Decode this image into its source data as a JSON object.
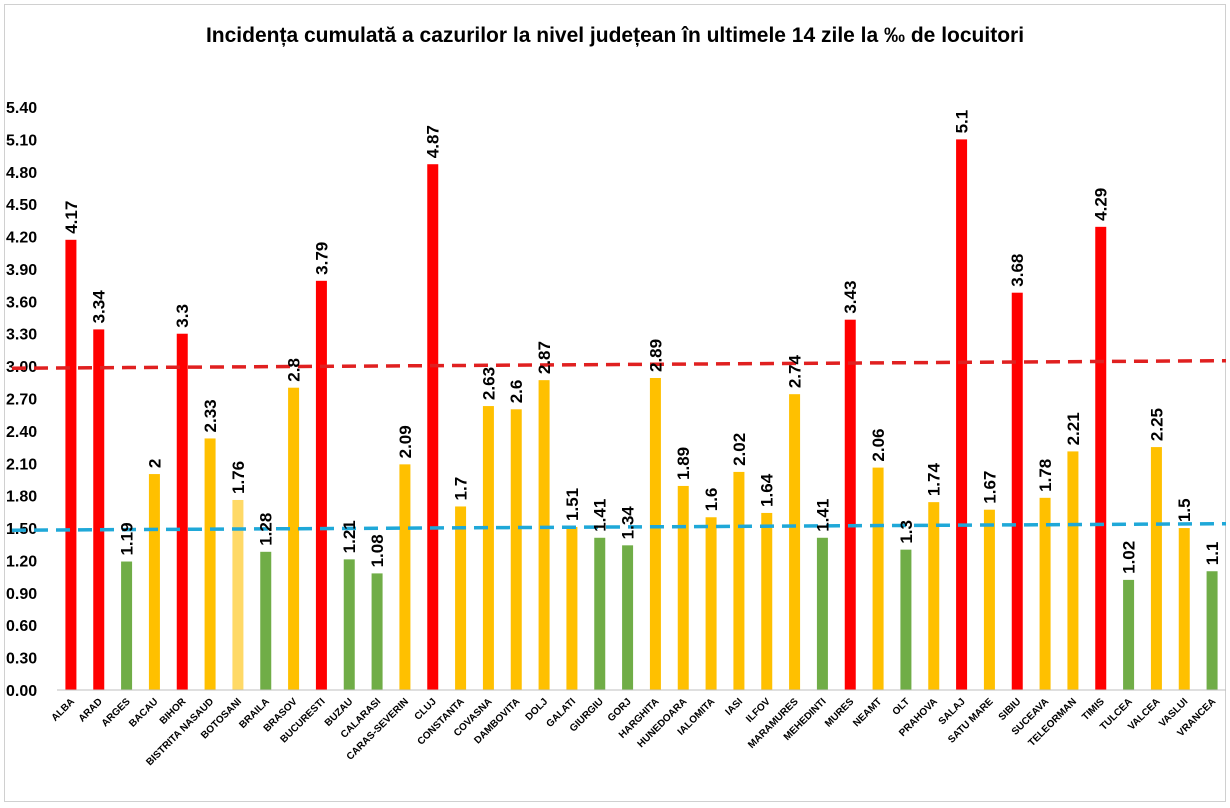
{
  "chart_data": {
    "type": "bar",
    "title": "Incidența cumulată a cazurilor la nivel județean în ultimele 14 zile la ‰ de locuitori",
    "xlabel": "",
    "ylabel": "",
    "ylim": [
      0,
      5.4
    ],
    "yticks": [
      "0.00",
      "0.30",
      "0.60",
      "0.90",
      "1.20",
      "1.50",
      "1.80",
      "2.10",
      "2.40",
      "2.70",
      "3.00",
      "3.30",
      "3.60",
      "3.90",
      "4.20",
      "4.50",
      "4.80",
      "5.10",
      "5.40"
    ],
    "grid": false,
    "categories": [
      "ALBA",
      "ARAD",
      "ARGES",
      "BACAU",
      "BIHOR",
      "BISTRITA NASAUD",
      "BOTOSANI",
      "BRAILA",
      "BRASOV",
      "BUCURESTI",
      "BUZAU",
      "CALARASI",
      "CARAS-SEVERIN",
      "CLUJ",
      "CONSTANTA",
      "COVASNA",
      "DAMBOVITA",
      "DOLJ",
      "GALATI",
      "GIURGIU",
      "GORJ",
      "HARGHITA",
      "HUNEDOARA",
      "IALOMITA",
      "IASI",
      "ILFOV",
      "MARAMURES",
      "MEHEDINTI",
      "MURES",
      "NEAMT",
      "OLT",
      "PRAHOVA",
      "SALAJ",
      "SATU MARE",
      "SIBIU",
      "SUCEAVA",
      "TELEORMAN",
      "TIMIS",
      "TULCEA",
      "VALCEA",
      "VASLUI",
      "VRANCEA"
    ],
    "values": [
      4.17,
      3.34,
      1.19,
      2,
      3.3,
      2.33,
      1.76,
      1.28,
      2.8,
      3.79,
      1.21,
      1.08,
      2.09,
      4.87,
      1.7,
      2.63,
      2.6,
      2.87,
      1.51,
      1.41,
      1.34,
      2.89,
      1.89,
      1.6,
      2.02,
      1.64,
      2.74,
      1.41,
      3.43,
      2.06,
      1.3,
      1.74,
      5.1,
      1.67,
      3.68,
      1.78,
      2.21,
      4.29,
      1.02,
      2.25,
      1.5,
      1.1
    ],
    "value_labels": [
      "4.17",
      "3.34",
      "1.19",
      "2",
      "3.3",
      "2.33",
      "1.76",
      "1.28",
      "2.8",
      "3.79",
      "1.21",
      "1.08",
      "2.09",
      "4.87",
      "1.7",
      "2.63",
      "2.6",
      "2.87",
      "1.51",
      "1.41",
      "1.34",
      "2.89",
      "1.89",
      "1.6",
      "2.02",
      "1.64",
      "2.74",
      "1.41",
      "3.43",
      "2.06",
      "1.3",
      "1.74",
      "5.1",
      "1.67",
      "3.68",
      "1.78",
      "2.21",
      "4.29",
      "1.02",
      "2.25",
      "1.5",
      "1.1"
    ],
    "colors": [
      "#ff0000",
      "#ff0000",
      "#70ad47",
      "#ffc000",
      "#ff0000",
      "#ffc000",
      "#ffd966",
      "#70ad47",
      "#ffc000",
      "#ff0000",
      "#70ad47",
      "#70ad47",
      "#ffc000",
      "#ff0000",
      "#ffc000",
      "#ffc000",
      "#ffc000",
      "#ffc000",
      "#ffc000",
      "#70ad47",
      "#70ad47",
      "#ffc000",
      "#ffc000",
      "#ffc000",
      "#ffc000",
      "#ffc000",
      "#ffc000",
      "#70ad47",
      "#ff0000",
      "#ffc000",
      "#70ad47",
      "#ffc000",
      "#ff0000",
      "#ffc000",
      "#ff0000",
      "#ffc000",
      "#ffc000",
      "#ff0000",
      "#70ad47",
      "#ffc000",
      "#ffc000",
      "#70ad47"
    ],
    "reference_lines": [
      {
        "start": 2.98,
        "end": 3.05,
        "color": "#e02020",
        "style": "dashed"
      },
      {
        "start": 1.48,
        "end": 1.54,
        "color": "#1fa8d8",
        "style": "dashed"
      }
    ]
  }
}
